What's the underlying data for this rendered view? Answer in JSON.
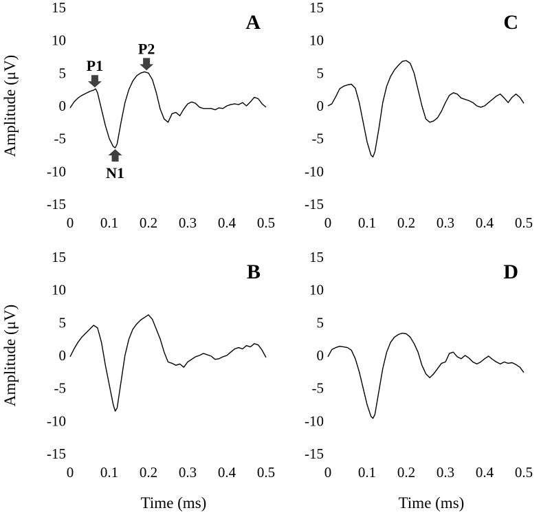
{
  "figure": {
    "x_axis_title": "Time (ms)",
    "y_axis_title": "Amplitude (μV)"
  },
  "chart_data": [
    {
      "type": "line",
      "panel": "A",
      "xlim": [
        0,
        0.5
      ],
      "ylim": [
        -15,
        15
      ],
      "x_ticks": [
        "0",
        "0.1",
        "0.2",
        "0.3",
        "0.4",
        "0.5"
      ],
      "y_ticks": [
        "15",
        "10",
        "5",
        "0",
        "-5",
        "-10",
        "-15"
      ],
      "show_ylabel": true,
      "show_xlabel": false,
      "annotations": [
        {
          "label": "P1",
          "x": 0.063,
          "y": 2.6,
          "direction": "down"
        },
        {
          "label": "N1",
          "x": 0.115,
          "y": -6.4,
          "direction": "up"
        },
        {
          "label": "P2",
          "x": 0.195,
          "y": 5.2,
          "direction": "down"
        }
      ],
      "x": [
        0,
        0.01,
        0.02,
        0.03,
        0.04,
        0.05,
        0.06,
        0.065,
        0.07,
        0.08,
        0.09,
        0.1,
        0.11,
        0.115,
        0.12,
        0.13,
        0.14,
        0.15,
        0.16,
        0.17,
        0.18,
        0.19,
        0.2,
        0.21,
        0.22,
        0.23,
        0.24,
        0.25,
        0.26,
        0.27,
        0.28,
        0.29,
        0.3,
        0.31,
        0.32,
        0.33,
        0.34,
        0.35,
        0.36,
        0.37,
        0.38,
        0.39,
        0.4,
        0.41,
        0.42,
        0.43,
        0.44,
        0.45,
        0.46,
        0.47,
        0.48,
        0.49,
        0.5
      ],
      "values": [
        -0.3,
        0.6,
        1.2,
        1.6,
        1.9,
        2.2,
        2.4,
        2.6,
        2.0,
        -0.5,
        -3.0,
        -5.0,
        -6.2,
        -6.4,
        -5.8,
        -2.5,
        0.5,
        2.5,
        3.8,
        4.6,
        5.0,
        5.2,
        5.0,
        4.0,
        2.0,
        -0.5,
        -2.0,
        -2.5,
        -1.2,
        -1.0,
        -1.5,
        -0.5,
        0.3,
        0.6,
        0.4,
        -0.2,
        -0.4,
        -0.4,
        -0.4,
        -0.6,
        -0.3,
        -0.4,
        0.0,
        0.2,
        0.3,
        0.2,
        0.5,
        0.0,
        0.6,
        1.3,
        1.1,
        0.3,
        -0.2
      ]
    },
    {
      "type": "line",
      "panel": "C",
      "xlim": [
        0,
        0.5
      ],
      "ylim": [
        -15,
        15
      ],
      "x_ticks": [
        "0",
        "0.1",
        "0.2",
        "0.3",
        "0.4",
        "0.5"
      ],
      "y_ticks": [
        "15",
        "10",
        "5",
        "0",
        "-5",
        "-10",
        "-15"
      ],
      "show_ylabel": false,
      "show_xlabel": false,
      "x": [
        0,
        0.01,
        0.02,
        0.03,
        0.04,
        0.05,
        0.06,
        0.07,
        0.08,
        0.09,
        0.1,
        0.11,
        0.115,
        0.12,
        0.13,
        0.14,
        0.15,
        0.16,
        0.17,
        0.18,
        0.19,
        0.2,
        0.21,
        0.22,
        0.23,
        0.24,
        0.25,
        0.26,
        0.27,
        0.28,
        0.29,
        0.3,
        0.31,
        0.32,
        0.33,
        0.34,
        0.35,
        0.36,
        0.37,
        0.38,
        0.39,
        0.4,
        0.41,
        0.42,
        0.43,
        0.44,
        0.45,
        0.46,
        0.47,
        0.48,
        0.49,
        0.5
      ],
      "values": [
        0.0,
        0.3,
        1.4,
        2.6,
        3.0,
        3.2,
        3.3,
        2.7,
        0.5,
        -2.5,
        -5.5,
        -7.5,
        -7.8,
        -7.0,
        -3.5,
        0.5,
        3.0,
        4.5,
        5.5,
        6.2,
        6.8,
        6.9,
        6.5,
        5.0,
        2.5,
        0.0,
        -2.0,
        -2.5,
        -2.3,
        -1.8,
        -0.8,
        0.5,
        1.6,
        2.0,
        1.8,
        1.2,
        1.0,
        0.8,
        0.5,
        0.0,
        -0.2,
        0.0,
        0.5,
        1.0,
        1.5,
        1.8,
        1.2,
        0.5,
        1.3,
        1.8,
        1.3,
        0.4
      ]
    },
    {
      "type": "line",
      "panel": "B",
      "xlim": [
        0,
        0.5
      ],
      "ylim": [
        -15,
        15
      ],
      "x_ticks": [
        "0",
        "0.1",
        "0.2",
        "0.3",
        "0.4",
        "0.5"
      ],
      "y_ticks": [
        "15",
        "10",
        "5",
        "0",
        "-5",
        "-10",
        "-15"
      ],
      "show_ylabel": true,
      "show_xlabel": true,
      "x": [
        0,
        0.01,
        0.02,
        0.03,
        0.04,
        0.05,
        0.06,
        0.07,
        0.08,
        0.09,
        0.1,
        0.11,
        0.115,
        0.12,
        0.13,
        0.14,
        0.15,
        0.16,
        0.17,
        0.18,
        0.19,
        0.2,
        0.21,
        0.22,
        0.23,
        0.24,
        0.25,
        0.26,
        0.27,
        0.28,
        0.29,
        0.3,
        0.31,
        0.32,
        0.33,
        0.34,
        0.35,
        0.36,
        0.37,
        0.38,
        0.39,
        0.4,
        0.41,
        0.42,
        0.43,
        0.44,
        0.45,
        0.46,
        0.47,
        0.48,
        0.49,
        0.5
      ],
      "values": [
        -0.2,
        1.0,
        2.0,
        2.8,
        3.4,
        4.0,
        4.6,
        4.2,
        2.0,
        -1.5,
        -4.5,
        -7.5,
        -8.5,
        -8.0,
        -4.0,
        0.0,
        2.5,
        4.0,
        4.8,
        5.4,
        5.8,
        6.2,
        5.5,
        4.0,
        2.5,
        0.5,
        -1.0,
        -1.2,
        -1.5,
        -1.3,
        -1.8,
        -1.0,
        -0.6,
        -0.2,
        0.0,
        0.3,
        0.1,
        -0.1,
        -0.6,
        -0.5,
        -0.2,
        0.0,
        0.5,
        1.0,
        1.2,
        1.0,
        1.5,
        1.3,
        1.8,
        1.6,
        0.8,
        -0.3
      ]
    },
    {
      "type": "line",
      "panel": "D",
      "xlim": [
        0,
        0.5
      ],
      "ylim": [
        -15,
        15
      ],
      "x_ticks": [
        "0",
        "0.1",
        "0.2",
        "0.3",
        "0.4",
        "0.5"
      ],
      "y_ticks": [
        "15",
        "10",
        "5",
        "0",
        "-5",
        "-10",
        "-15"
      ],
      "show_ylabel": false,
      "show_xlabel": true,
      "x": [
        0,
        0.01,
        0.02,
        0.03,
        0.04,
        0.05,
        0.06,
        0.07,
        0.08,
        0.09,
        0.1,
        0.11,
        0.115,
        0.12,
        0.13,
        0.14,
        0.15,
        0.16,
        0.17,
        0.18,
        0.19,
        0.2,
        0.21,
        0.22,
        0.23,
        0.24,
        0.25,
        0.26,
        0.27,
        0.28,
        0.29,
        0.3,
        0.31,
        0.32,
        0.33,
        0.34,
        0.35,
        0.36,
        0.37,
        0.38,
        0.39,
        0.4,
        0.41,
        0.42,
        0.43,
        0.44,
        0.45,
        0.46,
        0.47,
        0.48,
        0.49,
        0.5
      ],
      "values": [
        -0.2,
        0.9,
        1.2,
        1.4,
        1.3,
        1.2,
        0.8,
        -0.5,
        -2.5,
        -5.0,
        -7.5,
        -9.3,
        -9.6,
        -9.0,
        -5.5,
        -2.0,
        0.5,
        2.0,
        2.8,
        3.2,
        3.4,
        3.3,
        2.8,
        1.8,
        0.5,
        -1.5,
        -2.8,
        -3.4,
        -2.8,
        -2.0,
        -1.2,
        -1.0,
        0.3,
        0.5,
        -0.2,
        -0.5,
        0.0,
        -0.4,
        -1.0,
        -1.3,
        -1.0,
        -0.5,
        -0.1,
        -0.6,
        -1.0,
        -1.3,
        -1.0,
        -1.2,
        -1.1,
        -1.4,
        -1.8,
        -2.6
      ]
    }
  ]
}
